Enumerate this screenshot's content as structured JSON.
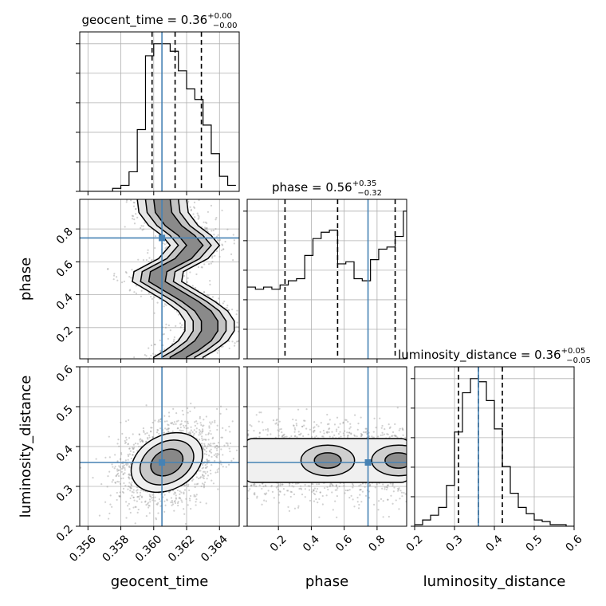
{
  "chart_data": {
    "type": "corner",
    "parameters": [
      "geocent_time",
      "phase",
      "luminosity_distance"
    ],
    "truth": {
      "geocent_time": 0.3605,
      "phase": 0.745,
      "luminosity_distance": 0.36
    },
    "titles": [
      {
        "param": "geocent_time",
        "label": "geocent_time = 0.36",
        "plus": "+0.00",
        "minus": "−0.00"
      },
      {
        "param": "phase",
        "label": "phase = 0.56",
        "plus": "+0.35",
        "minus": "−0.32"
      },
      {
        "param": "luminosity_distance",
        "label": "luminosity_distance = 0.36",
        "plus": "+0.05",
        "minus": "−0.05"
      }
    ],
    "axis_labels": {
      "geocent_time": "geocent_time",
      "phase": "phase",
      "luminosity_distance": "luminosity_distance"
    },
    "ranges": {
      "geocent_time": [
        0.3555,
        0.3652
      ],
      "phase": [
        0.01,
        0.98
      ],
      "luminosity_distance": [
        0.2,
        0.6
      ]
    },
    "ticks": {
      "geocent_time": [
        "0.356",
        "0.358",
        "0.360",
        "0.362",
        "0.364"
      ],
      "phase": [
        "0.2",
        "0.4",
        "0.6",
        "0.8"
      ],
      "luminosity_distance_x": [
        "0.2",
        "0.3",
        "0.4",
        "0.5",
        "0.6"
      ],
      "luminosity_distance_y": [
        "0.2",
        "0.3",
        "0.4",
        "0.5",
        "0.6"
      ]
    },
    "quantiles": {
      "geocent_time": [
        0.3599,
        0.3613,
        0.3629
      ],
      "phase": [
        0.24,
        0.56,
        0.91
      ],
      "luminosity_distance": [
        0.31,
        0.36,
        0.42
      ]
    },
    "histograms": {
      "geocent_time": {
        "edges": [
          0.3555,
          0.356,
          0.3565,
          0.357,
          0.3575,
          0.358,
          0.3585,
          0.359,
          0.3595,
          0.36,
          0.3605,
          0.361,
          0.3615,
          0.362,
          0.3625,
          0.363,
          0.3635,
          0.364,
          0.3645,
          0.365
        ],
        "counts": [
          0,
          0,
          0,
          0,
          2,
          4,
          13,
          41,
          90,
          98,
          98,
          93,
          80,
          68,
          61,
          44,
          25,
          10,
          4
        ]
      },
      "phase": {
        "edges": [
          0.01,
          0.06,
          0.11,
          0.16,
          0.21,
          0.26,
          0.31,
          0.36,
          0.41,
          0.46,
          0.51,
          0.56,
          0.61,
          0.66,
          0.71,
          0.76,
          0.81,
          0.86,
          0.91,
          0.96,
          1.0
        ],
        "counts": [
          34,
          33,
          34,
          33,
          35,
          37,
          38,
          49,
          57,
          60,
          61,
          45,
          46,
          38,
          37,
          47,
          52,
          53,
          58,
          70
        ]
      },
      "luminosity_distance": {
        "edges": [
          0.2,
          0.22,
          0.24,
          0.26,
          0.28,
          0.3,
          0.32,
          0.34,
          0.36,
          0.38,
          0.4,
          0.42,
          0.44,
          0.46,
          0.48,
          0.5,
          0.52,
          0.54,
          0.56,
          0.58,
          0.6
        ],
        "counts": [
          1,
          4,
          7,
          12,
          26,
          60,
          85,
          94,
          92,
          80,
          62,
          38,
          21,
          12,
          8,
          4,
          3,
          1,
          1,
          0
        ]
      }
    },
    "contours": {
      "phase_vs_geocent_time": {
        "ridge": [
          [
            0.3605,
            0.98
          ],
          [
            0.3606,
            0.9
          ],
          [
            0.3612,
            0.82
          ],
          [
            0.362,
            0.76
          ],
          [
            0.3625,
            0.7
          ],
          [
            0.3618,
            0.62
          ],
          [
            0.3603,
            0.54
          ],
          [
            0.3602,
            0.48
          ],
          [
            0.3612,
            0.42
          ],
          [
            0.3622,
            0.36
          ],
          [
            0.363,
            0.3
          ],
          [
            0.3634,
            0.24
          ],
          [
            0.3634,
            0.18
          ],
          [
            0.363,
            0.12
          ],
          [
            0.3622,
            0.06
          ],
          [
            0.3615,
            0.02
          ]
        ],
        "half_widths": [
          0.0005,
          0.001,
          0.0015
        ]
      },
      "luminosity_distance_vs_geocent_time": {
        "center": [
          0.3608,
          0.36
        ],
        "semi_axes": [
          0.0023,
          0.068
        ],
        "tilt_deg": -28,
        "scales": [
          0.45,
          0.75,
          1.0
        ]
      },
      "luminosity_distance_vs_phase": {
        "center": [
          0.5,
          0.365
        ],
        "lobes": [
          0.5,
          0.93
        ],
        "scales": [
          0.35,
          0.7,
          1.0
        ]
      }
    }
  }
}
